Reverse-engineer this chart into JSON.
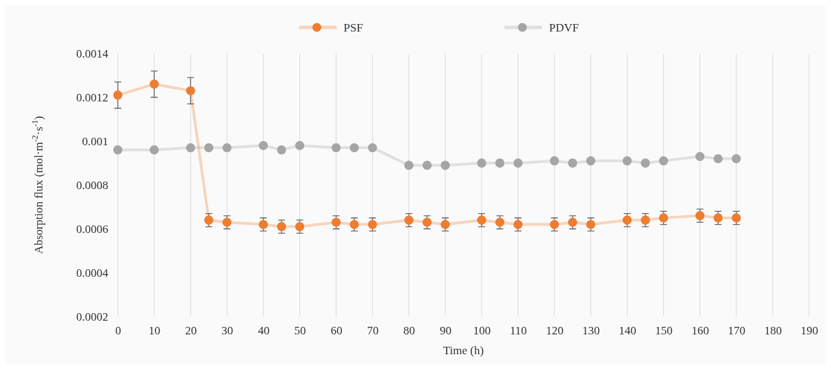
{
  "chart_data": {
    "type": "line",
    "xlabel": "Time (h)",
    "ylabel": "Absorption flux (mol·m$^{-2}$·s$^{-1}$)",
    "x": [
      0,
      10,
      20,
      25,
      30,
      40,
      45,
      50,
      60,
      65,
      70,
      80,
      85,
      90,
      100,
      105,
      110,
      120,
      125,
      130,
      140,
      145,
      150,
      160,
      165,
      170
    ],
    "xlim": [
      0,
      190
    ],
    "xticks": [
      0,
      10,
      20,
      30,
      40,
      50,
      60,
      70,
      80,
      90,
      100,
      110,
      120,
      130,
      140,
      150,
      160,
      170,
      180,
      190
    ],
    "ylim": [
      0.0002,
      0.0014
    ],
    "yticks": [
      0.0002,
      0.0004,
      0.0006,
      0.0008,
      0.001,
      0.0012,
      0.0014
    ],
    "grid": "x",
    "legend": "top",
    "marker": "circle",
    "line_style": "solid",
    "series": [
      {
        "name": "PSF",
        "color": "#ed7d31",
        "values": [
          0.00121,
          0.00126,
          0.00123,
          0.00064,
          0.00063,
          0.00062,
          0.00061,
          0.00061,
          0.00063,
          0.00062,
          0.00062,
          0.00064,
          0.00063,
          0.00062,
          0.00064,
          0.00063,
          0.00062,
          0.00062,
          0.00063,
          0.00062,
          0.00064,
          0.00064,
          0.00065,
          0.00066,
          0.00065,
          0.00065
        ],
        "errors": [
          6e-05,
          6e-05,
          6e-05,
          3e-05,
          3e-05,
          3e-05,
          3e-05,
          3e-05,
          3e-05,
          3e-05,
          3e-05,
          3e-05,
          3e-05,
          3e-05,
          3e-05,
          3e-05,
          3e-05,
          3e-05,
          3e-05,
          3e-05,
          3e-05,
          3e-05,
          3e-05,
          3e-05,
          3e-05,
          3e-05
        ]
      },
      {
        "name": "PDVF",
        "color": "#a5a5a5",
        "values": [
          0.00096,
          0.00096,
          0.00097,
          0.00097,
          0.00097,
          0.00098,
          0.00096,
          0.00098,
          0.00097,
          0.00097,
          0.00097,
          0.00089,
          0.00089,
          0.00089,
          0.0009,
          0.0009,
          0.0009,
          0.00091,
          0.0009,
          0.00091,
          0.00091,
          0.0009,
          0.00091,
          0.00093,
          0.00092,
          0.00092
        ]
      }
    ]
  }
}
